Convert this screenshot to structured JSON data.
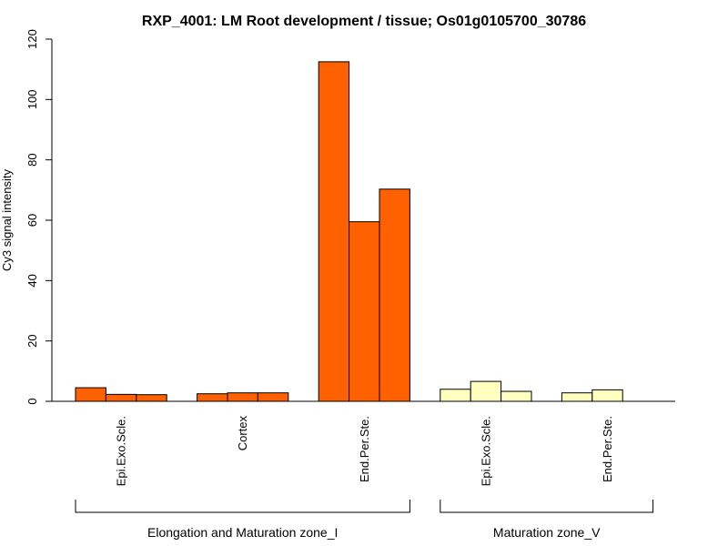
{
  "chart_data": {
    "type": "bar",
    "title": "RXP_4001: LM Root development / tissue; Os01g0105700_30786",
    "xlabel": "",
    "ylabel": "Cy3 signal intensity",
    "ylim": [
      0,
      120
    ],
    "yticks": [
      0,
      20,
      40,
      60,
      80,
      100,
      120
    ],
    "grid": false,
    "categories": [
      {
        "label": "Epi.Exo.Scle.",
        "group": 0,
        "values": [
          4.5,
          2.3,
          2.2
        ],
        "color": "#FF6000"
      },
      {
        "label": "Cortex",
        "group": 0,
        "values": [
          2.5,
          2.8,
          2.8
        ],
        "color": "#FF6000"
      },
      {
        "label": "End.Per.Ste.",
        "group": 0,
        "values": [
          112.5,
          59.5,
          70.3
        ],
        "color": "#FF6000"
      },
      {
        "label": "Epi.Exo.Scle.",
        "group": 1,
        "values": [
          4.0,
          6.6,
          3.3
        ],
        "color": "#FFFFC0"
      },
      {
        "label": "End.Per.Ste.",
        "group": 1,
        "values": [
          2.8,
          3.8
        ],
        "color": "#FFFFC0"
      }
    ],
    "groups": [
      {
        "label": "Elongation and Maturation zone_I"
      },
      {
        "label": "Maturation zone_V"
      }
    ]
  }
}
